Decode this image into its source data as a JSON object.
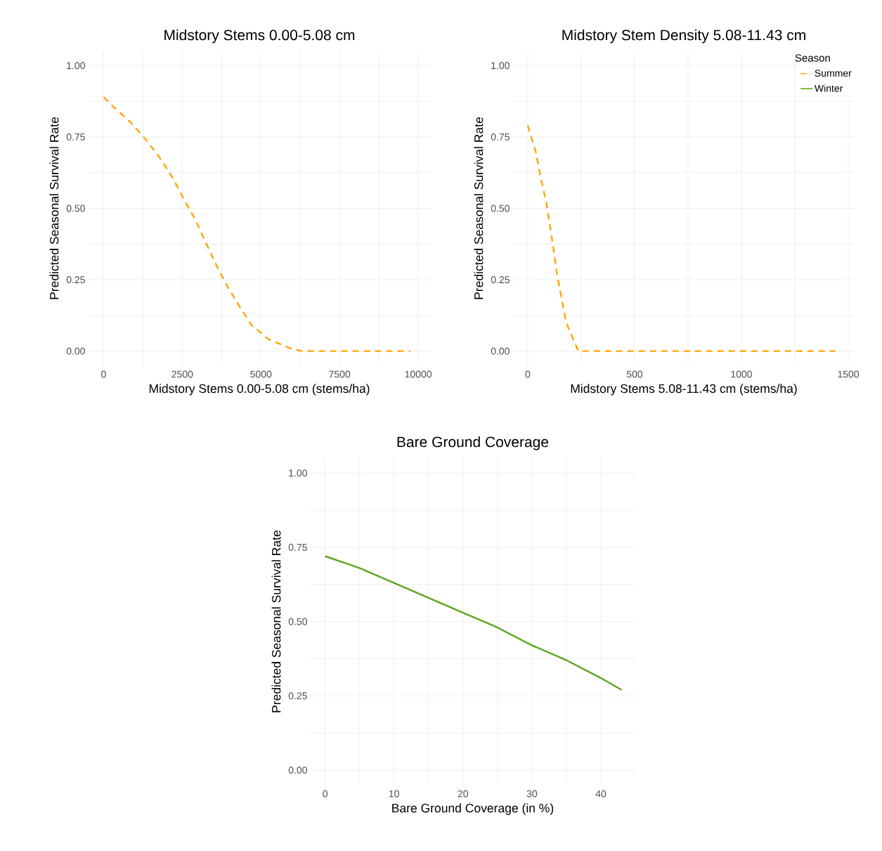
{
  "chart_data": [
    {
      "type": "line",
      "title": "Midstory Stems 0.00-5.08 cm",
      "xlabel": "Midstory Stems 0.00-5.08 cm (stems/ha)",
      "ylabel": "Predicted Seasonal Survival Rate",
      "xlim": [
        -500,
        10400
      ],
      "ylim": [
        -0.05,
        1.05
      ],
      "xticks": [
        0,
        2500,
        5000,
        7500,
        10000
      ],
      "yticks": [
        {
          "value": 0,
          "label": "0.00"
        },
        {
          "value": 0.25,
          "label": "0.25"
        },
        {
          "value": 0.5,
          "label": "0.50"
        },
        {
          "value": 0.75,
          "label": "0.75"
        },
        {
          "value": 1,
          "label": "1.00"
        }
      ],
      "grid": true,
      "x": [
        0,
        270,
        870,
        1350,
        1770,
        2180,
        2560,
        2920,
        3250,
        3590,
        3920,
        4300,
        4710,
        5270,
        5940,
        6300,
        9750
      ],
      "series": [
        {
          "name": "Summer",
          "color": "#ffa500",
          "line_style": "dashed",
          "values": [
            0.89,
            0.86,
            0.8,
            0.74,
            0.68,
            0.61,
            0.53,
            0.46,
            0.38,
            0.3,
            0.23,
            0.16,
            0.09,
            0.04,
            0.01,
            0,
            0
          ]
        }
      ]
    },
    {
      "type": "line",
      "title": "Midstory Stem Density 5.08-11.43 cm",
      "xlabel": "Midstory Stems 5.08-11.43 cm (stems/ha)",
      "ylabel": "Predicted Seasonal Survival Rate",
      "xlim": [
        -72,
        1533
      ],
      "ylim": [
        -0.05,
        1.05
      ],
      "xticks": [
        0,
        500,
        1000,
        1500
      ],
      "yticks": [
        {
          "value": 0,
          "label": "0.00"
        },
        {
          "value": 0.25,
          "label": "0.25"
        },
        {
          "value": 0.5,
          "label": "0.50"
        },
        {
          "value": 0.75,
          "label": "0.75"
        },
        {
          "value": 1,
          "label": "1.00"
        }
      ],
      "grid": true,
      "legend": "top right",
      "legend_title": "Season",
      "x": [
        0,
        37,
        63,
        87,
        104,
        120,
        137,
        157,
        180,
        214,
        237,
        1440
      ],
      "series": [
        {
          "name": "Summer",
          "color": "#ffa500",
          "line_style": "dashed",
          "values": [
            0.79,
            0.7,
            0.6,
            0.52,
            0.44,
            0.36,
            0.27,
            0.19,
            0.1,
            0.04,
            0,
            0
          ]
        }
      ]
    },
    {
      "type": "line",
      "title": "Bare Ground Coverage",
      "xlabel": "Bare Ground Coverage (in %)",
      "ylabel": "Predicted Seasonal Survival Rate",
      "xlim": [
        -2.2,
        45
      ],
      "ylim": [
        -0.05,
        1.05
      ],
      "xticks": [
        0,
        10,
        20,
        30,
        40
      ],
      "yticks": [
        {
          "value": 0,
          "label": "0.00"
        },
        {
          "value": 0.25,
          "label": "0.25"
        },
        {
          "value": 0.5,
          "label": "0.50"
        },
        {
          "value": 0.75,
          "label": "0.75"
        },
        {
          "value": 1,
          "label": "1.00"
        }
      ],
      "grid": true,
      "x": [
        0,
        5,
        10,
        15,
        20,
        25,
        30,
        35,
        40,
        43
      ],
      "series": [
        {
          "name": "Winter",
          "color": "#5da521",
          "line_style": "solid",
          "values": [
            0.72,
            0.68,
            0.63,
            0.58,
            0.53,
            0.48,
            0.42,
            0.37,
            0.31,
            0.27
          ]
        }
      ]
    }
  ]
}
